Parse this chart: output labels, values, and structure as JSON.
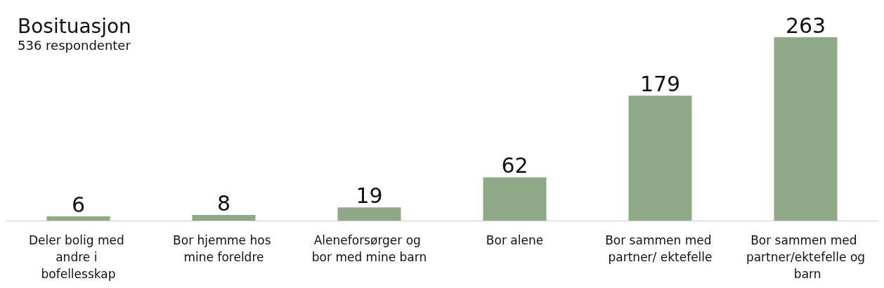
{
  "chart_data": {
    "type": "bar",
    "title": "Bosituasjon",
    "subtitle": "536 respondenter",
    "categories": [
      "Deler bolig med andre i bofellesskap",
      "Bor hjemme hos mine foreldre",
      "Aleneforsørger og bor med mine barn",
      "Bor alene",
      "Bor sammen med partner/ ektefelle",
      "Bor sammen med partner/ektefelle og barn"
    ],
    "values": [
      6,
      8,
      19,
      62,
      179,
      263
    ],
    "color": "#8fa988",
    "data_labels": true
  }
}
